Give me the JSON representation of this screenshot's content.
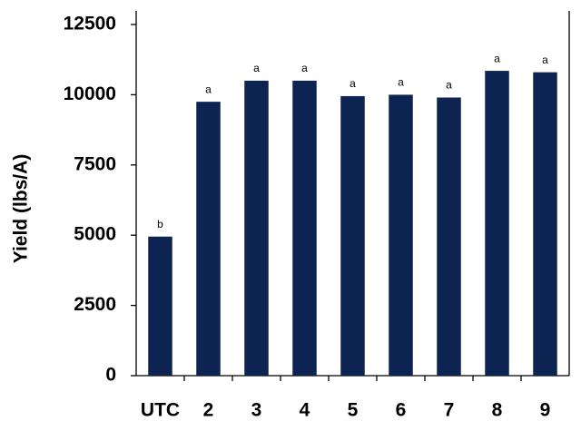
{
  "chart_data": {
    "type": "bar",
    "y_label": "Yield (lbs/A)",
    "categories": [
      "UTC",
      "2",
      "3",
      "4",
      "5",
      "6",
      "7",
      "8",
      "9"
    ],
    "values": [
      4950,
      9750,
      10500,
      10500,
      9950,
      10000,
      9900,
      10850,
      10800
    ],
    "annotations": [
      "b",
      "a",
      "a",
      "a",
      "a",
      "a",
      "a",
      "a",
      "a"
    ],
    "color": "#0d2452",
    "ylim": [
      0,
      12500
    ],
    "yticks": [
      0,
      2500,
      5000,
      7500,
      10000,
      12500
    ],
    "grid": false
  }
}
